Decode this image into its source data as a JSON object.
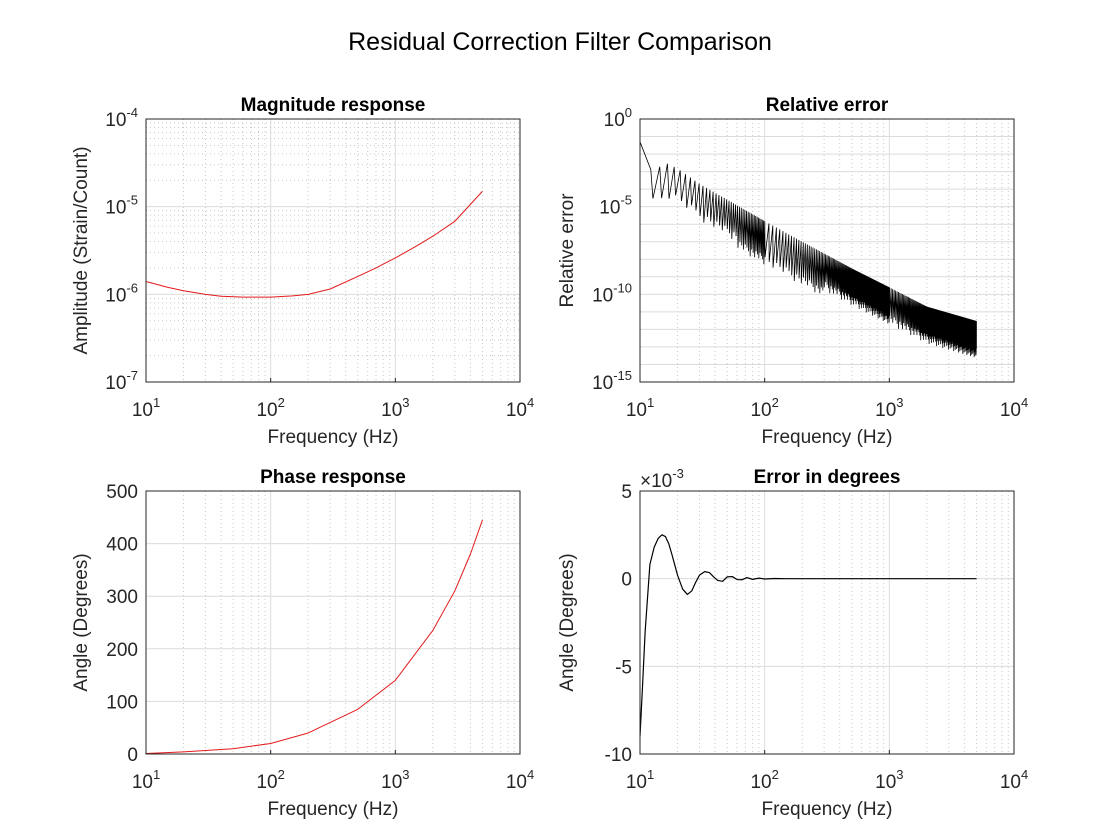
{
  "figure": {
    "title": "Residual Correction Filter Comparison"
  },
  "colors": {
    "magnitude_line": "#e41a1c",
    "phase_line": "#e41a1c",
    "error_line": "#000000",
    "grid": "#dcdcdc",
    "axes": "#262626"
  },
  "chart_data": [
    {
      "type": "line",
      "title": "Magnitude response",
      "xlabel": "Frequency (Hz)",
      "ylabel": "Amplitude (Strain/Count)",
      "xscale": "log",
      "yscale": "log",
      "xlim": [
        10,
        10000
      ],
      "ylim": [
        1e-07,
        0.0001
      ],
      "xticks": [
        {
          "base": "10",
          "exp": "1"
        },
        {
          "base": "10",
          "exp": "2"
        },
        {
          "base": "10",
          "exp": "3"
        },
        {
          "base": "10",
          "exp": "4"
        }
      ],
      "yticks": [
        {
          "base": "10",
          "exp": "-7"
        },
        {
          "base": "10",
          "exp": "-6"
        },
        {
          "base": "10",
          "exp": "-5"
        },
        {
          "base": "10",
          "exp": "-4"
        }
      ],
      "grid": true,
      "series": [
        {
          "color": "#e41a1c",
          "x": [
            10,
            15,
            20,
            30,
            40,
            60,
            100,
            150,
            200,
            300,
            500,
            700,
            1000,
            1500,
            2000,
            3000,
            5000
          ],
          "y": [
            1.4e-06,
            1.2e-06,
            1.1e-06,
            1e-06,
            9.5e-07,
            9.3e-07,
            9.3e-07,
            9.6e-07,
            1e-06,
            1.15e-06,
            1.6e-06,
            2e-06,
            2.6e-06,
            3.6e-06,
            4.6e-06,
            6.8e-06,
            1.5e-05
          ]
        }
      ]
    },
    {
      "type": "line",
      "title": "Relative error",
      "xlabel": "Frequency (Hz)",
      "ylabel": "Relative error",
      "xscale": "log",
      "yscale": "log",
      "xlim": [
        10,
        10000
      ],
      "ylim": [
        1e-15,
        1
      ],
      "xticks": [
        {
          "base": "10",
          "exp": "1"
        },
        {
          "base": "10",
          "exp": "2"
        },
        {
          "base": "10",
          "exp": "3"
        },
        {
          "base": "10",
          "exp": "4"
        }
      ],
      "yticks": [
        {
          "base": "10",
          "exp": "-15"
        },
        {
          "base": "10",
          "exp": "-10"
        },
        {
          "base": "10",
          "exp": "-5"
        },
        {
          "base": "10",
          "exp": "0"
        }
      ],
      "grid": true,
      "series": [
        {
          "color": "#000000",
          "envelope_x": [
            10,
            11,
            13,
            15,
            20,
            30,
            50,
            100,
            200,
            500,
            1000,
            2000,
            5000
          ],
          "envelope_y": [
            0.05,
            0.015,
            0.0003,
            0.004,
            0.0015,
            0.0002,
            2.5e-05,
            1.5e-06,
            1e-07,
            3e-09,
            2.5e-10,
            2e-11,
            3e-12
          ],
          "dip_min_y": [
            1e-05,
            1e-06,
            1e-07,
            1e-09,
            1e-10,
            3e-12,
            1e-13,
            1e-13,
            1e-13
          ]
        }
      ]
    },
    {
      "type": "line",
      "title": "Phase response",
      "xlabel": "Frequency (Hz)",
      "ylabel": "Angle (Degrees)",
      "xscale": "log",
      "yscale": "linear",
      "xlim": [
        10,
        10000
      ],
      "ylim": [
        0,
        500
      ],
      "xticks": [
        {
          "base": "10",
          "exp": "1"
        },
        {
          "base": "10",
          "exp": "2"
        },
        {
          "base": "10",
          "exp": "3"
        },
        {
          "base": "10",
          "exp": "4"
        }
      ],
      "yticks": [
        "0",
        "100",
        "200",
        "300",
        "400",
        "500"
      ],
      "grid": true,
      "series": [
        {
          "color": "#e41a1c",
          "x": [
            10,
            20,
            50,
            100,
            200,
            500,
            1000,
            2000,
            3000,
            4000,
            5000
          ],
          "y": [
            1,
            4,
            10,
            20,
            40,
            85,
            140,
            235,
            310,
            380,
            445
          ]
        }
      ]
    },
    {
      "type": "line",
      "title": "Error in degrees",
      "xlabel": "Frequency (Hz)",
      "ylabel": "Angle (Degrees)",
      "xscale": "log",
      "yscale": "linear",
      "xlim": [
        10,
        10000
      ],
      "ylim": [
        -0.01,
        0.005
      ],
      "y_multiplier": {
        "base": "×10",
        "exp": "-3"
      },
      "xticks": [
        {
          "base": "10",
          "exp": "1"
        },
        {
          "base": "10",
          "exp": "2"
        },
        {
          "base": "10",
          "exp": "3"
        },
        {
          "base": "10",
          "exp": "4"
        }
      ],
      "yticks": [
        "-10",
        "-5",
        "0",
        "5"
      ],
      "grid": true,
      "series": [
        {
          "color": "#000000",
          "x": [
            10,
            10.5,
            11,
            12,
            13,
            14,
            15,
            16,
            17,
            18,
            20,
            22,
            24,
            26,
            28,
            30,
            33,
            36,
            39,
            42,
            46,
            50,
            55,
            60,
            66,
            72,
            80,
            90,
            100,
            120,
            150,
            200,
            500,
            1000,
            2000,
            5000
          ],
          "y": [
            -0.009,
            -0.006,
            -0.003,
            0.0008,
            0.0018,
            0.0023,
            0.0025,
            0.0024,
            0.002,
            0.0014,
            0.0002,
            -0.0006,
            -0.0009,
            -0.0007,
            -0.0002,
            0.0002,
            0.0004,
            0.00035,
            0.0001,
            -0.0001,
            -0.00015,
            0.0001,
            0.00012,
            -5e-05,
            -6e-05,
            6e-05,
            -4e-05,
            3e-05,
            -2e-05,
            1e-05,
            0,
            0,
            0,
            0,
            0,
            0
          ]
        }
      ]
    }
  ]
}
